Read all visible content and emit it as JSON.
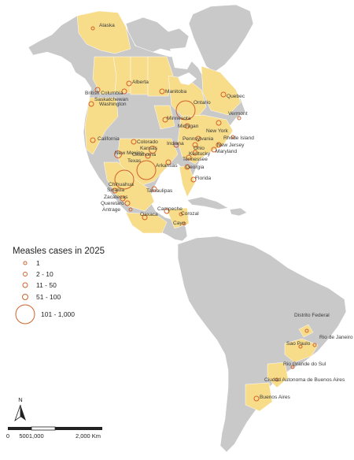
{
  "legend": {
    "title": "Measles cases in 2025",
    "classes": [
      "1",
      "2 - 10",
      "11 - 50",
      "51 - 100",
      "101 - 1,000"
    ]
  },
  "north_arrow": "N",
  "scale_bar": {
    "labels": [
      "0",
      "5001,000",
      "2,000 Km"
    ]
  },
  "colors": {
    "affected": "#f7dc8a",
    "land": "#c9c9c9",
    "marker": "#d2622c"
  },
  "places": [
    {
      "name": "Alaska",
      "cls": 0
    },
    {
      "name": "British Columbia",
      "cls": 1
    },
    {
      "name": "Alberta",
      "cls": 1
    },
    {
      "name": "Saskatchewan",
      "cls": 1
    },
    {
      "name": "Manitoba",
      "cls": 1
    },
    {
      "name": "Ontario",
      "cls": 4
    },
    {
      "name": "Quebec",
      "cls": 1
    },
    {
      "name": "Washington",
      "cls": 1
    },
    {
      "name": "Minnesota",
      "cls": 1
    },
    {
      "name": "Michigan",
      "cls": 1
    },
    {
      "name": "New York",
      "cls": 1
    },
    {
      "name": "Vermont",
      "cls": 0
    },
    {
      "name": "Rhode Island",
      "cls": 0
    },
    {
      "name": "New Jersey",
      "cls": 1
    },
    {
      "name": "Maryland",
      "cls": 1
    },
    {
      "name": "Pennsylvania",
      "cls": 1
    },
    {
      "name": "Ohio",
      "cls": 1
    },
    {
      "name": "Kentucky",
      "cls": 1
    },
    {
      "name": "Tennessee",
      "cls": 1
    },
    {
      "name": "Indiana",
      "cls": 1
    },
    {
      "name": "Georgia",
      "cls": 1
    },
    {
      "name": "Florida",
      "cls": 1
    },
    {
      "name": "Arkansas",
      "cls": 1
    },
    {
      "name": "California",
      "cls": 1
    },
    {
      "name": "Colorado",
      "cls": 1
    },
    {
      "name": "Kansas",
      "cls": 2
    },
    {
      "name": "Oklahoma",
      "cls": 1
    },
    {
      "name": "New Mexico",
      "cls": 2
    },
    {
      "name": "Texas",
      "cls": 4
    },
    {
      "name": "Chihuahua",
      "cls": 4
    },
    {
      "name": "Sinaloa",
      "cls": 1
    },
    {
      "name": "Zacatecas",
      "cls": 1
    },
    {
      "name": "Tamaulipas",
      "cls": 1
    },
    {
      "name": "Queretaro",
      "cls": 1
    },
    {
      "name": "Antrage",
      "cls": 0
    },
    {
      "name": "Oaxaca",
      "cls": 1
    },
    {
      "name": "Campeche",
      "cls": 1
    },
    {
      "name": "Corozal",
      "cls": 0
    },
    {
      "name": "Cayo",
      "cls": 0
    },
    {
      "name": "Distrito Federal",
      "cls": 0
    },
    {
      "name": "Rio de Janeiro",
      "cls": 0
    },
    {
      "name": "Sao Paulo",
      "cls": 0
    },
    {
      "name": "Rio Grande do Sul",
      "cls": 0
    },
    {
      "name": "Ciudad Autonoma de Buenos Aires",
      "cls": 0
    },
    {
      "name": "Buenos Aires",
      "cls": 1
    }
  ]
}
